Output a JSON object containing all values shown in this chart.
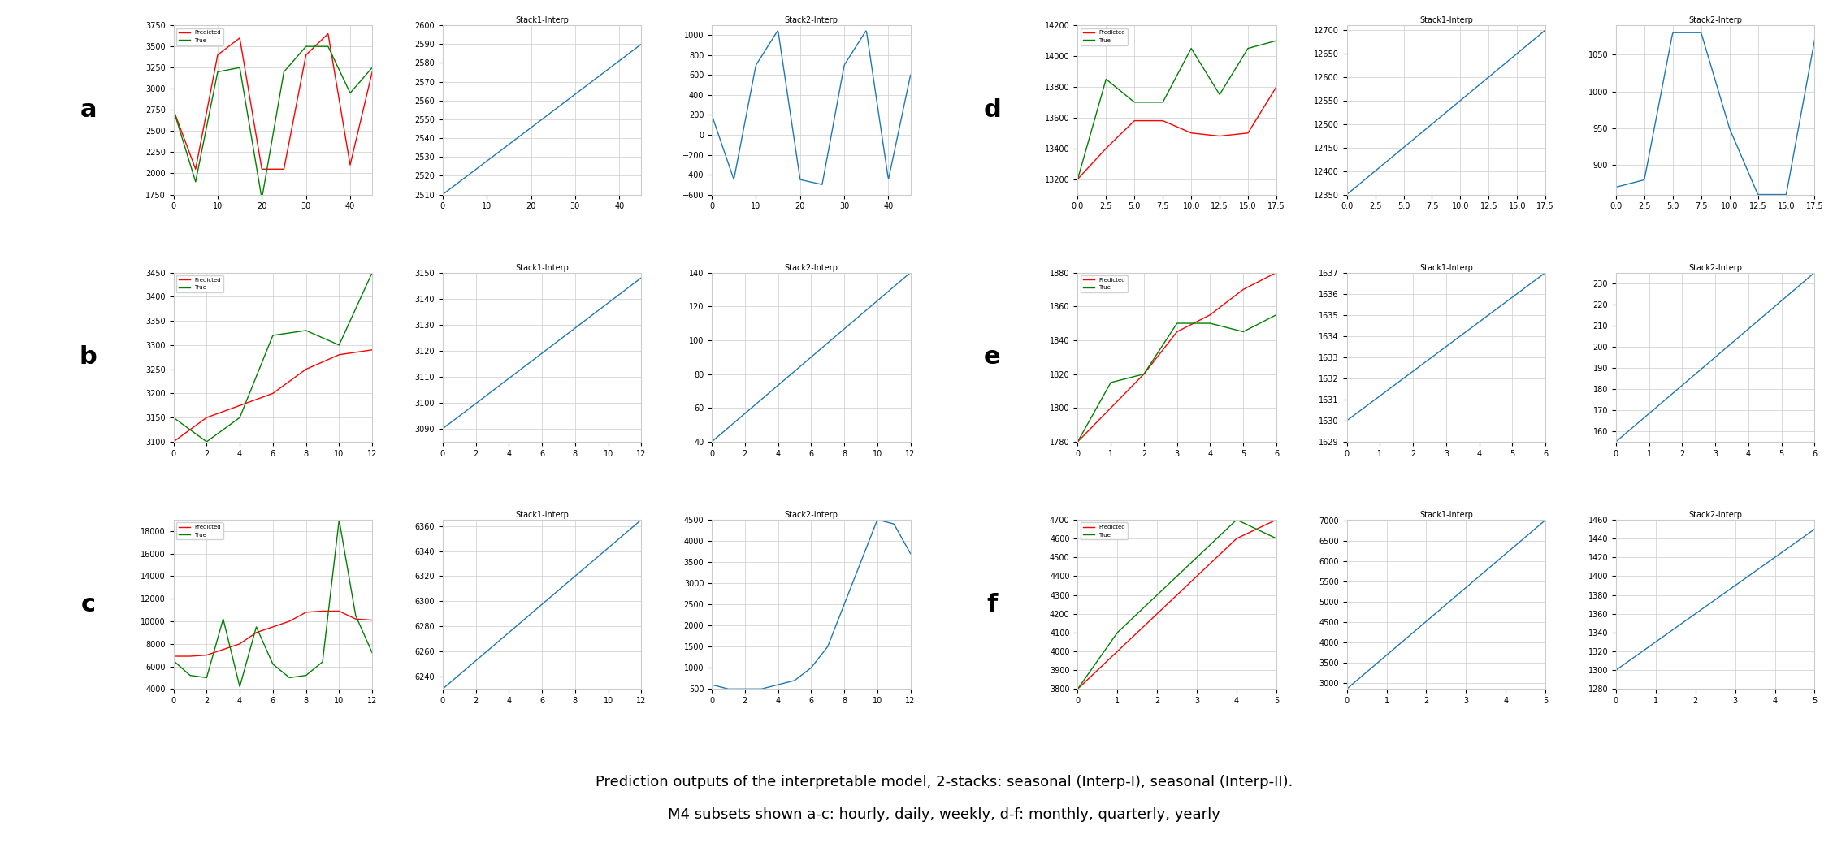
{
  "title_line1": "Prediction outputs of the interpretable model, 2-stacks: seasonal (Interp-I), seasonal (Interp-II).",
  "title_line2": "M4 subsets shown a-c: hourly, daily, weekly, d-f: monthly, quarterly, yearly",
  "row_labels": [
    "a",
    "b",
    "c",
    "d",
    "e",
    "f"
  ],
  "rows": [
    {
      "label": "a",
      "pred_true": {
        "x": [
          0,
          5,
          10,
          15,
          20,
          25,
          30,
          35,
          40,
          45
        ],
        "pred": [
          2750,
          2050,
          3400,
          3600,
          2050,
          2050,
          3400,
          3650,
          2100,
          3200
        ],
        "true": [
          2750,
          1900,
          3200,
          3250,
          1700,
          3200,
          3500,
          3500,
          2950,
          3250
        ],
        "ylim": [
          1750,
          3750
        ],
        "xlim": [
          0,
          45
        ]
      },
      "stack1": {
        "x": [
          0,
          45
        ],
        "y": [
          2510,
          2590
        ],
        "ylim": [
          2510,
          2600
        ],
        "xlim": [
          0,
          45
        ]
      },
      "stack2": {
        "x": [
          0,
          5,
          10,
          15,
          20,
          25,
          30,
          35,
          40,
          45
        ],
        "y": [
          200,
          -450,
          700,
          1050,
          -450,
          -500,
          700,
          1050,
          -450,
          600
        ],
        "ylim": [
          -600,
          1100
        ],
        "xlim": [
          0,
          45
        ]
      }
    },
    {
      "label": "b",
      "pred_true": {
        "x": [
          0,
          2,
          4,
          6,
          8,
          10,
          12
        ],
        "pred": [
          3100,
          3150,
          3175,
          3200,
          3250,
          3280,
          3290
        ],
        "true": [
          3150,
          3100,
          3150,
          3320,
          3330,
          3300,
          3450
        ],
        "ylim": [
          3100,
          3450
        ],
        "xlim": [
          0,
          12
        ]
      },
      "stack1": {
        "x": [
          0,
          12
        ],
        "y": [
          3090,
          3148
        ],
        "ylim": [
          3085,
          3150
        ],
        "xlim": [
          0,
          12
        ]
      },
      "stack2": {
        "x": [
          0,
          12
        ],
        "y": [
          40,
          140
        ],
        "ylim": [
          40,
          140
        ],
        "xlim": [
          0,
          12
        ]
      }
    },
    {
      "label": "c",
      "pred_true": {
        "x": [
          0,
          1,
          2,
          3,
          4,
          5,
          6,
          7,
          8,
          9,
          10,
          11,
          12
        ],
        "pred": [
          6900,
          6900,
          7000,
          7500,
          8000,
          9000,
          9500,
          10000,
          10800,
          10900,
          10900,
          10200,
          10100
        ],
        "true": [
          6500,
          5200,
          5000,
          10200,
          4200,
          9500,
          6200,
          5000,
          5200,
          6400,
          19000,
          10500,
          7200
        ],
        "ylim": [
          4000,
          19000
        ],
        "xlim": [
          0,
          12
        ]
      },
      "stack1": {
        "x": [
          0,
          12
        ],
        "y": [
          6230,
          6365
        ],
        "ylim": [
          6230,
          6365
        ],
        "xlim": [
          0,
          12
        ]
      },
      "stack2": {
        "x": [
          0,
          1,
          2,
          3,
          4,
          5,
          6,
          7,
          8,
          9,
          10,
          11,
          12
        ],
        "y": [
          600,
          500,
          500,
          500,
          600,
          700,
          1000,
          1500,
          2500,
          3500,
          4500,
          4400,
          3700
        ],
        "ylim": [
          500,
          4500
        ],
        "xlim": [
          0,
          12
        ]
      }
    },
    {
      "label": "d",
      "pred_true": {
        "x": [
          0,
          2.5,
          5,
          7.5,
          10,
          12.5,
          15,
          17.5
        ],
        "pred": [
          13200,
          13400,
          13580,
          13580,
          13500,
          13480,
          13500,
          13800
        ],
        "true": [
          13200,
          13850,
          13700,
          13700,
          14050,
          13750,
          14050,
          14100
        ],
        "ylim": [
          13100,
          14200
        ],
        "xlim": [
          0,
          17.5
        ]
      },
      "stack1": {
        "x": [
          0,
          17.5
        ],
        "y": [
          12350,
          12700
        ],
        "ylim": [
          12350,
          12710
        ],
        "xlim": [
          0,
          17.5
        ]
      },
      "stack2": {
        "x": [
          0,
          2.5,
          5,
          7.5,
          10,
          12.5,
          15,
          17.5
        ],
        "y": [
          870,
          880,
          1080,
          1080,
          950,
          860,
          860,
          1070
        ],
        "ylim": [
          860,
          1090
        ],
        "xlim": [
          0,
          17.5
        ]
      }
    },
    {
      "label": "e",
      "pred_true": {
        "x": [
          0,
          1,
          2,
          3,
          4,
          5,
          6
        ],
        "pred": [
          1780,
          1800,
          1820,
          1845,
          1855,
          1870,
          1880
        ],
        "true": [
          1780,
          1815,
          1820,
          1850,
          1850,
          1845,
          1855
        ],
        "ylim": [
          1780,
          1880
        ],
        "xlim": [
          0,
          6
        ]
      },
      "stack1": {
        "x": [
          0,
          6
        ],
        "y": [
          1630,
          1637
        ],
        "ylim": [
          1629,
          1637
        ],
        "xlim": [
          0,
          6
        ]
      },
      "stack2": {
        "x": [
          0,
          6
        ],
        "y": [
          155,
          235
        ],
        "ylim": [
          155,
          235
        ],
        "xlim": [
          0,
          6
        ]
      }
    },
    {
      "label": "f",
      "pred_true": {
        "x": [
          0,
          1,
          2,
          3,
          4,
          5
        ],
        "pred": [
          3800,
          4000,
          4200,
          4400,
          4600,
          4700
        ],
        "true": [
          3800,
          4100,
          4300,
          4500,
          4700,
          4600
        ],
        "ylim": [
          3800,
          4700
        ],
        "xlim": [
          0,
          5
        ]
      },
      "stack1": {
        "x": [
          0,
          5
        ],
        "y": [
          2850,
          7020
        ],
        "ylim": [
          2850,
          7025
        ],
        "xlim": [
          0,
          5
        ]
      },
      "stack2": {
        "x": [
          0,
          5
        ],
        "y": [
          1300,
          1450
        ],
        "ylim": [
          1280,
          1460
        ],
        "xlim": [
          0,
          5
        ]
      }
    }
  ]
}
